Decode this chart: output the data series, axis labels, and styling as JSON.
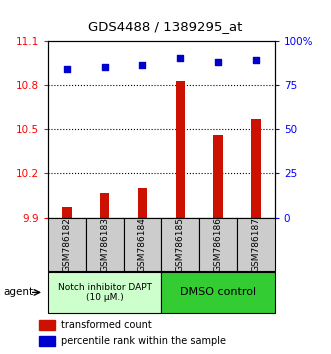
{
  "title": "GDS4488 / 1389295_at",
  "samples": [
    "GSM786182",
    "GSM786183",
    "GSM786184",
    "GSM786185",
    "GSM786186",
    "GSM786187"
  ],
  "bar_values": [
    9.97,
    10.07,
    10.1,
    10.83,
    10.46,
    10.57
  ],
  "scatter_values": [
    84,
    85,
    86,
    90,
    88,
    89
  ],
  "ylim_left": [
    9.9,
    11.1
  ],
  "ylim_right": [
    0,
    100
  ],
  "yticks_left": [
    9.9,
    10.2,
    10.5,
    10.8,
    11.1
  ],
  "yticks_right": [
    0,
    25,
    50,
    75,
    100
  ],
  "ytick_labels_left": [
    "9.9",
    "10.2",
    "10.5",
    "10.8",
    "11.1"
  ],
  "ytick_labels_right": [
    "0",
    "25",
    "50",
    "75",
    "100%"
  ],
  "bar_color": "#cc1100",
  "scatter_color": "#0000cc",
  "bar_width": 0.25,
  "bar_bottom": 9.9,
  "grid_lines": [
    10.2,
    10.5,
    10.8
  ],
  "group1_label": "Notch inhibitor DAPT\n(10 μM.)",
  "group2_label": "DMSO control",
  "agent_label": "agent",
  "legend_bar_label": "transformed count",
  "legend_scatter_label": "percentile rank within the sample",
  "group1_color": "#ccffcc",
  "group2_color": "#33cc33",
  "tick_area_color": "#cccccc",
  "figsize": [
    3.31,
    3.54
  ],
  "dpi": 100
}
